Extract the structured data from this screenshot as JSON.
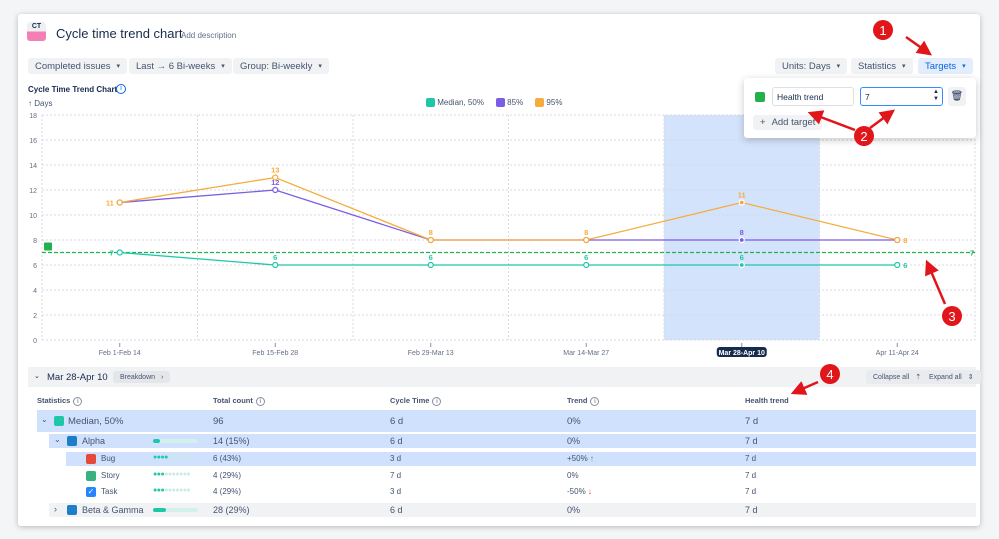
{
  "header": {
    "logo_text": "CT",
    "title": "Cycle time trend chart",
    "add_description": "Add description"
  },
  "filters": {
    "issues": "Completed issues",
    "range": "Last → 6 Bi-weeks",
    "group": "Group: Bi-weekly",
    "units": "Units: Days",
    "statistics": "Statistics",
    "targets": "Targets"
  },
  "targets_popup": {
    "name_value": "Health trend",
    "value": "7",
    "add_target": "Add target",
    "color": "#22b14c"
  },
  "chart_title": "Cycle Time Trend Chart",
  "chart_data": {
    "type": "line",
    "title": "Cycle Time Trend Chart",
    "ylabel": "↑ Days",
    "ylim": [
      0,
      18
    ],
    "yticks": [
      0,
      2,
      4,
      6,
      8,
      10,
      12,
      14,
      16,
      18
    ],
    "grid": true,
    "legend": "top-center",
    "categories": [
      "Feb 1-Feb 14",
      "Feb 15-Feb 28",
      "Feb 29-Mar 13",
      "Mar 14-Mar 27",
      "Mar 28-Apr 10",
      "Apr 11-Apr 24"
    ],
    "selected_category": "Mar 28-Apr 10",
    "series": [
      {
        "name": "Median, 50%",
        "color": "#1fc7a9",
        "values": [
          7,
          6,
          6,
          6,
          6,
          6
        ]
      },
      {
        "name": "85%",
        "color": "#7b5ce5",
        "values": [
          11,
          12,
          8,
          8,
          8,
          8
        ]
      },
      {
        "name": "95%",
        "color": "#f5ac3b",
        "values": [
          11,
          13,
          8,
          8,
          11,
          8
        ]
      }
    ],
    "target_line": {
      "value": 7,
      "label": "7",
      "color": "#22b14c"
    }
  },
  "breakdown": {
    "period": "Mar 28-Apr 10",
    "breakdown_btn": "Breakdown",
    "collapse_all": "Collapse all",
    "expand_all": "Expand all",
    "columns": [
      "Statistics",
      "Total count",
      "Cycle Time",
      "Trend",
      "Health trend"
    ],
    "rows": [
      {
        "name": "Median, 50%",
        "count": "96",
        "cycle": "6 d",
        "trend": "0%",
        "health": "7 d"
      },
      {
        "name": "Alpha",
        "count": "14 (15%)",
        "cycle": "6 d",
        "trend": "0%",
        "health": "7 d",
        "share": 0.15
      },
      {
        "name": "Bug",
        "count": "6 (43%)",
        "cycle": "3 d",
        "trend": "+50%",
        "health": "7 d",
        "share": 0.43
      },
      {
        "name": "Story",
        "count": "4 (29%)",
        "cycle": "7 d",
        "trend": "0%",
        "health": "7 d",
        "share": 0.29
      },
      {
        "name": "Task",
        "count": "4 (29%)",
        "cycle": "3 d",
        "trend": "-50%",
        "health": "7 d",
        "share": 0.29
      },
      {
        "name": "Beta & Gamma",
        "count": "28 (29%)",
        "cycle": "6 d",
        "trend": "0%",
        "health": "7 d",
        "share": 0.29
      }
    ]
  },
  "annotations": [
    "1",
    "2",
    "3",
    "4"
  ]
}
